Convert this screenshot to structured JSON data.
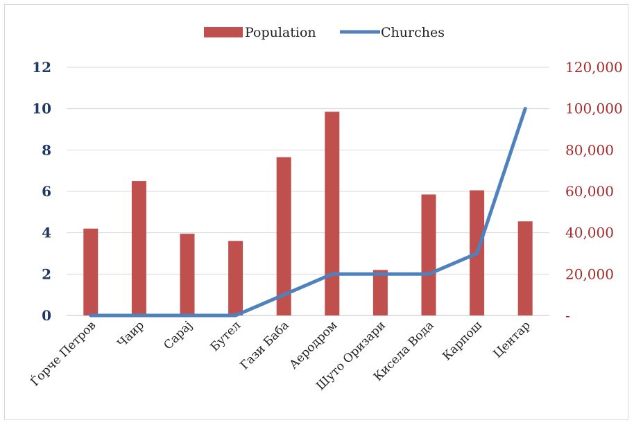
{
  "chart_data": {
    "type": "bar",
    "categories": [
      "Ѓорче Петров",
      "Чаир",
      "Сарај",
      "Бутел",
      "Гази Баба",
      "Аеродром",
      "Шуто Оризари",
      "Кисела Вода",
      "Карпош",
      "Центар"
    ],
    "series": [
      {
        "name": "Population",
        "type": "bar",
        "axis": "right",
        "color": "#c0504d",
        "values": [
          42000,
          65000,
          39500,
          36000,
          76500,
          98500,
          22000,
          58500,
          60500,
          45500
        ]
      },
      {
        "name": "Churches",
        "type": "line",
        "axis": "left",
        "color": "#4f81bd",
        "values": [
          0,
          0,
          0,
          0,
          1,
          2,
          2,
          2,
          3,
          10
        ]
      }
    ],
    "ylim_left": [
      0,
      12
    ],
    "ylim_right": [
      0,
      120000
    ],
    "left_ticks": [
      "0",
      "2",
      "4",
      "6",
      "8",
      "10",
      "12"
    ],
    "right_ticks": [
      "-",
      "20,000",
      "40,000",
      "60,000",
      "80,000",
      "100,000",
      "120,000"
    ],
    "grid": true,
    "legend_position": "top"
  }
}
